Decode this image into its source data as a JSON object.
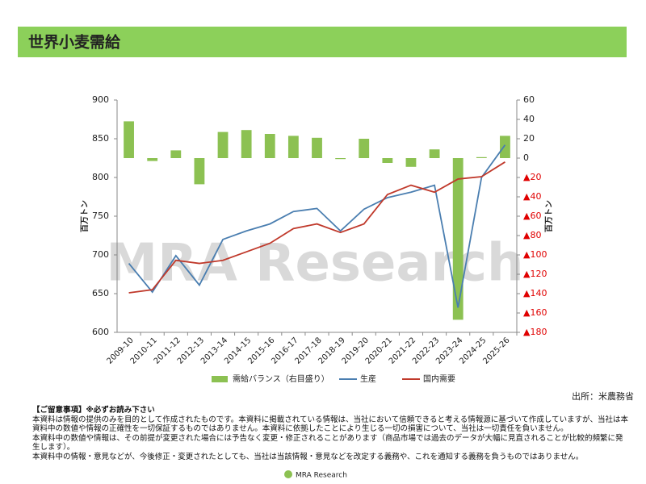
{
  "header": {
    "title": "世界小麦需給"
  },
  "chart_data": {
    "type": "bar_line",
    "categories": [
      "2009-10",
      "2010-11",
      "2011-12",
      "2012-13",
      "2013-14",
      "2014-15",
      "2015-16",
      "2016-17",
      "2017-18",
      "2018-19",
      "2019-20",
      "2020-21",
      "2021-22",
      "2022-23",
      "2023-24",
      "2024-25",
      "2025-26"
    ],
    "series": [
      {
        "name": "需給バランス（右目盛り）",
        "type": "bar",
        "axis": "y2",
        "color": "#8cc152",
        "values": [
          38,
          -3,
          8,
          -27,
          27,
          29,
          25,
          23,
          21,
          -1,
          20,
          -5,
          -9,
          9,
          -167,
          1,
          23
        ]
      },
      {
        "name": "生産",
        "type": "line",
        "axis": "y",
        "color": "#4a7eb0",
        "values": [
          689,
          652,
          699,
          661,
          720,
          731,
          740,
          756,
          760,
          731,
          759,
          774,
          781,
          790,
          632,
          800,
          842
        ]
      },
      {
        "name": "国内需要",
        "type": "line",
        "axis": "y",
        "color": "#c0392b",
        "values": [
          651,
          655,
          693,
          689,
          693,
          704,
          715,
          734,
          740,
          729,
          740,
          778,
          790,
          781,
          798,
          801,
          820
        ]
      }
    ],
    "ylabel": "百万トン",
    "y2label": "百万トン",
    "ylim": [
      600,
      900
    ],
    "yticks": [
      600,
      650,
      700,
      750,
      800,
      850,
      900
    ],
    "y2lim": [
      -180,
      60
    ],
    "y2ticks": [
      60,
      40,
      20,
      0,
      {
        "value": -20,
        "label": "▲20"
      },
      {
        "value": -40,
        "label": "▲40"
      },
      {
        "value": -60,
        "label": "▲60"
      },
      {
        "value": -80,
        "label": "▲80"
      },
      {
        "value": -100,
        "label": "▲100"
      },
      {
        "value": -120,
        "label": "▲120"
      },
      {
        "value": -140,
        "label": "▲140"
      },
      {
        "value": -160,
        "label": "▲160"
      },
      {
        "value": -180,
        "label": "▲180"
      }
    ],
    "negative_tick_color": "#e00000",
    "legend": "bottom",
    "grid": false
  },
  "watermark": "MRA Research",
  "source": "出所：米農務省",
  "notes": {
    "heading": "【ご留意事項】※必ずお読み下さい",
    "lines": [
      "本資料は情報の提供のみを目的として作成されたものです。本資料に掲載されている情報は、当社において信頼できると考える情報源に基づいて作成していますが、当社は本資料中の数値や情報の正確性を一切保証するものではありません。本資料に依拠したことにより生じる一切の損害について、当社は一切責任を負いません。",
      "本資料中の数値や情報は、その前提が変更された場合には予告なく変更・修正されることがあります（商品市場では過去のデータが大幅に見直されることが比較的頻繁に発生します）。",
      "本資料中の情報・意見などが、今後修正・変更されたとしても、当社は当該情報・意見などを改定する義務や、これを通知する義務を負うものではありません。"
    ]
  },
  "footer": {
    "logo": "MRA Research"
  }
}
